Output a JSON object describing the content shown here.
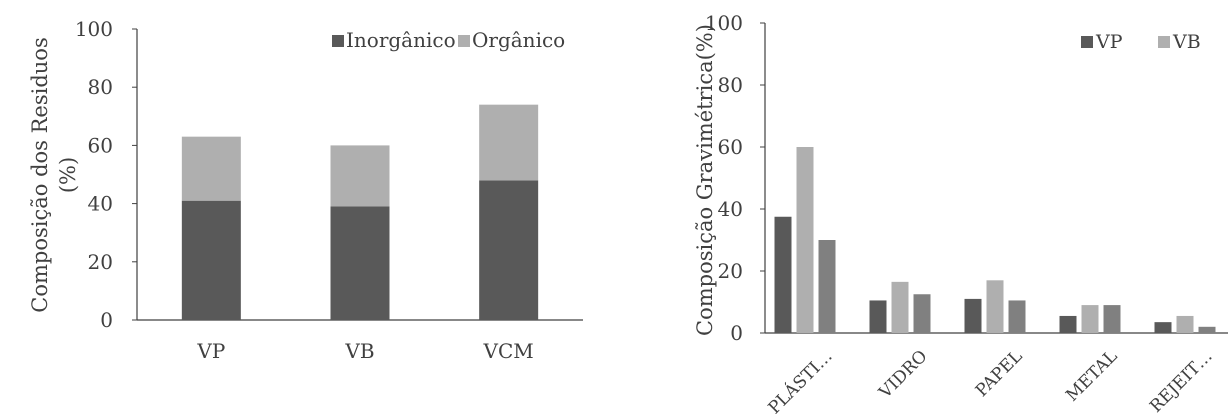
{
  "chart_data": [
    {
      "type": "bar",
      "stacked": true,
      "categories": [
        "VP",
        "VB",
        "VCM"
      ],
      "series": [
        {
          "name": "Inorgânico",
          "values": [
            41,
            39,
            48
          ],
          "color": "#595959"
        },
        {
          "name": "Orgânico",
          "values": [
            22,
            21,
            26
          ],
          "color": "#afafaf"
        }
      ],
      "ylabel_lines": [
        "Composição dos Residuos",
        "(%)"
      ],
      "ylim": [
        0,
        100
      ],
      "yticks": [
        0,
        20,
        40,
        60,
        80,
        100
      ],
      "grid": false,
      "legend_position": "top-right"
    },
    {
      "type": "bar",
      "stacked": false,
      "categories": [
        "PLÁSTI…",
        "VIDRO",
        "PAPEL",
        "METAL",
        "REJEIT…"
      ],
      "series": [
        {
          "name": "VP",
          "values": [
            37.5,
            10.5,
            11,
            5.5,
            3.5
          ],
          "color": "#595959"
        },
        {
          "name": "VB",
          "values": [
            60,
            16.5,
            17,
            9,
            5.5
          ],
          "color": "#afafaf"
        },
        {
          "name": "",
          "values": [
            30,
            12.5,
            10.5,
            9,
            2
          ],
          "color": "#808080"
        }
      ],
      "ylabel_lines": [
        "Composição Gravimétrica(%)"
      ],
      "ylim": [
        0,
        100
      ],
      "yticks": [
        0,
        20,
        40,
        60,
        80,
        100
      ],
      "grid": false,
      "legend_position": "top-right"
    }
  ]
}
